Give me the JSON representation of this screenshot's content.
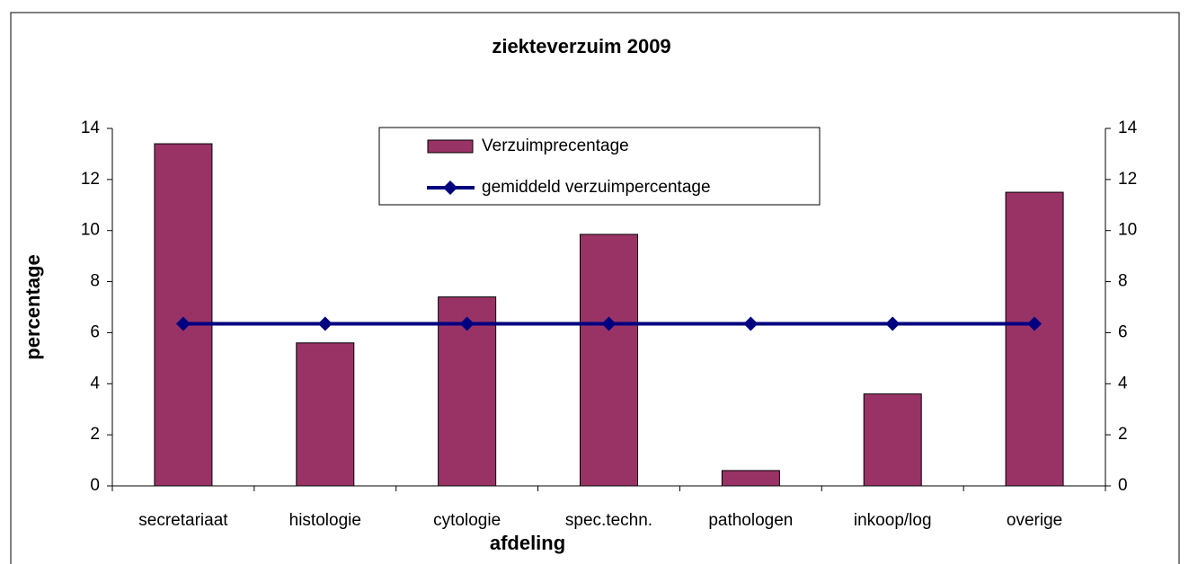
{
  "chart_data": {
    "type": "bar",
    "title": "ziekteverzuim 2009",
    "xlabel": "afdeling",
    "ylabel": "percentage",
    "categories": [
      "secretariaat",
      "histologie",
      "cytologie",
      "spec.techn.",
      "pathologen",
      "inkoop/log",
      "overige"
    ],
    "series": [
      {
        "name": "Verzuimprecentage",
        "type": "bar",
        "color": "#993366",
        "values": [
          13.4,
          5.6,
          7.4,
          9.85,
          0.6,
          3.6,
          11.5
        ]
      },
      {
        "name": "gemiddeld verzuimpercentage",
        "type": "line",
        "axis": "y2",
        "color": "#000080",
        "values": [
          6.35,
          6.35,
          6.35,
          6.35,
          6.35,
          6.35,
          6.35
        ]
      }
    ],
    "ylim": [
      0,
      14
    ],
    "yticks": [
      0,
      2,
      4,
      6,
      8,
      10,
      12,
      14
    ],
    "y2lim": [
      0,
      14
    ],
    "y2ticks": [
      0,
      2,
      4,
      6,
      8,
      10,
      12,
      14
    ],
    "legend": "top"
  }
}
